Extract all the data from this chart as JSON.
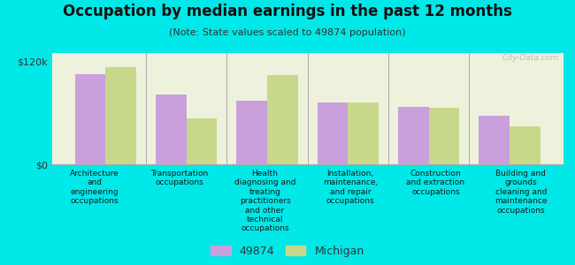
{
  "title": "Occupation by median earnings in the past 12 months",
  "subtitle": "(Note: State values scaled to 49874 population)",
  "background_color": "#00e8e8",
  "plot_bg_color": "#eef2dc",
  "categories": [
    "Architecture\nand\nengineering\noccupations",
    "Transportation\noccupations",
    "Health\ndiagnosing and\ntreating\npractitioners\nand other\ntechnical\noccupations",
    "Installation,\nmaintenance,\nand repair\noccupations",
    "Construction\nand extraction\noccupations",
    "Building and\ngrounds\ncleaning and\nmaintenance\noccupations"
  ],
  "values_49874": [
    105000,
    82000,
    74000,
    72000,
    67000,
    57000
  ],
  "values_michigan": [
    114000,
    54000,
    104000,
    72000,
    66000,
    44000
  ],
  "bar_color_49874": "#c9a0dc",
  "bar_color_michigan": "#c8d88a",
  "ylim": [
    0,
    130000
  ],
  "yticks": [
    0,
    120000
  ],
  "ytick_labels": [
    "$0",
    "$120k"
  ],
  "legend_labels": [
    "49874",
    "Michigan"
  ],
  "watermark": "City-Data.com"
}
